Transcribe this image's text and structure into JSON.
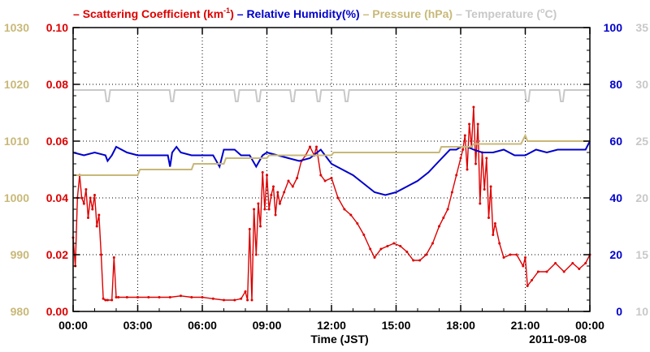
{
  "chart_data": {
    "type": "line",
    "date_label": "2011-09-08",
    "xlabel": "Time (JST)",
    "x_ticks": [
      "00:00",
      "03:00",
      "06:00",
      "09:00",
      "12:00",
      "15:00",
      "18:00",
      "21:00",
      "00:00"
    ],
    "xlim_hours": [
      0,
      24
    ],
    "grid": true,
    "legend_position": "top",
    "axes": {
      "pressure": {
        "ticks": [
          "980",
          "990",
          "1000",
          "1010",
          "1020",
          "1030"
        ],
        "range": [
          980,
          1030
        ],
        "color": "#c8b878",
        "side": "left-outer"
      },
      "scattering": {
        "ticks": [
          "0.00",
          "0.02",
          "0.04",
          "0.06",
          "0.08",
          "0.10"
        ],
        "range": [
          0,
          0.1
        ],
        "color": "#dd0000",
        "side": "left-inner"
      },
      "humidity": {
        "ticks": [
          "0",
          "20",
          "40",
          "60",
          "80",
          "100"
        ],
        "range": [
          0,
          100
        ],
        "color": "#0000cc",
        "side": "right-inner"
      },
      "temperature": {
        "ticks": [
          "10",
          "15",
          "20",
          "25",
          "30",
          "35"
        ],
        "range": [
          10,
          35
        ],
        "color": "#c8c8c8",
        "side": "right-outer"
      }
    },
    "series": [
      {
        "id": "scattering",
        "name": "Scattering Coefficient (km",
        "name_sup": "-1",
        "name_tail": ")",
        "color": "#dd0000",
        "markers": true,
        "x": [
          0.0,
          0.1,
          0.2,
          0.3,
          0.4,
          0.5,
          0.6,
          0.7,
          0.8,
          0.9,
          1.0,
          1.1,
          1.2,
          1.3,
          1.4,
          1.5,
          1.6,
          1.8,
          1.9,
          2.0,
          2.1,
          2.5,
          3.0,
          3.5,
          4.0,
          4.5,
          5.0,
          5.5,
          6.0,
          6.5,
          7.0,
          7.5,
          7.8,
          8.0,
          8.1,
          8.2,
          8.3,
          8.4,
          8.5,
          8.6,
          8.7,
          8.8,
          8.9,
          9.0,
          9.1,
          9.2,
          9.3,
          9.4,
          9.5,
          9.6,
          9.8,
          10.0,
          10.2,
          10.4,
          10.6,
          10.8,
          11.0,
          11.2,
          11.3,
          11.5,
          11.7,
          12.0,
          12.3,
          12.6,
          12.9,
          13.2,
          13.5,
          13.8,
          14.0,
          14.3,
          14.6,
          14.9,
          15.2,
          15.5,
          15.8,
          16.1,
          16.4,
          16.7,
          17.0,
          17.2,
          17.4,
          17.6,
          17.8,
          18.0,
          18.1,
          18.2,
          18.3,
          18.4,
          18.5,
          18.6,
          18.7,
          18.8,
          18.9,
          19.0,
          19.1,
          19.2,
          19.3,
          19.4,
          19.5,
          19.6,
          19.8,
          20.0,
          20.3,
          20.6,
          20.9,
          21.0,
          21.1,
          21.3,
          21.6,
          22.0,
          22.4,
          22.8,
          23.2,
          23.5,
          23.8,
          24.0
        ],
        "y": [
          0.026,
          0.016,
          0.04,
          0.048,
          0.04,
          0.038,
          0.043,
          0.033,
          0.04,
          0.036,
          0.041,
          0.03,
          0.034,
          0.02,
          0.0045,
          0.004,
          0.004,
          0.004,
          0.019,
          0.005,
          0.005,
          0.005,
          0.005,
          0.005,
          0.005,
          0.005,
          0.0055,
          0.005,
          0.005,
          0.0045,
          0.004,
          0.004,
          0.0045,
          0.007,
          0.004,
          0.029,
          0.004,
          0.036,
          0.02,
          0.038,
          0.03,
          0.049,
          0.036,
          0.048,
          0.036,
          0.041,
          0.044,
          0.034,
          0.042,
          0.038,
          0.042,
          0.046,
          0.044,
          0.047,
          0.053,
          0.055,
          0.058,
          0.055,
          0.058,
          0.048,
          0.046,
          0.047,
          0.04,
          0.036,
          0.034,
          0.031,
          0.027,
          0.022,
          0.019,
          0.022,
          0.023,
          0.024,
          0.023,
          0.021,
          0.018,
          0.018,
          0.02,
          0.024,
          0.03,
          0.033,
          0.036,
          0.042,
          0.048,
          0.054,
          0.057,
          0.062,
          0.05,
          0.066,
          0.058,
          0.072,
          0.052,
          0.066,
          0.038,
          0.056,
          0.043,
          0.054,
          0.033,
          0.044,
          0.027,
          0.031,
          0.024,
          0.019,
          0.02,
          0.02,
          0.016,
          0.019,
          0.009,
          0.011,
          0.014,
          0.014,
          0.017,
          0.014,
          0.017,
          0.015,
          0.017,
          0.02
        ]
      },
      {
        "id": "humidity",
        "name": "Relative Humidity(%)",
        "color": "#0000cc",
        "markers": false,
        "x": [
          0.0,
          0.5,
          1.0,
          1.5,
          1.6,
          1.8,
          2.0,
          2.5,
          3.0,
          3.5,
          4.0,
          4.4,
          4.5,
          4.6,
          4.8,
          5.0,
          5.5,
          6.0,
          6.5,
          6.8,
          7.0,
          7.5,
          7.8,
          8.0,
          8.2,
          8.5,
          8.8,
          9.0,
          9.5,
          10.0,
          10.5,
          11.0,
          11.5,
          12.0,
          12.5,
          13.0,
          13.5,
          14.0,
          14.5,
          15.0,
          15.5,
          16.0,
          16.5,
          17.0,
          17.5,
          17.8,
          18.0,
          18.3,
          18.6,
          19.0,
          19.5,
          20.0,
          20.5,
          21.0,
          21.5,
          22.0,
          22.5,
          23.0,
          23.5,
          23.8,
          24.0
        ],
        "y": [
          56,
          55,
          56,
          55,
          53,
          55,
          58,
          56,
          55,
          55,
          55,
          55,
          51,
          56,
          58,
          56,
          55,
          55,
          55,
          51,
          57,
          57,
          55,
          55,
          55,
          51,
          55,
          56,
          55,
          54,
          53,
          54,
          57,
          52,
          50,
          48,
          45,
          42,
          41,
          42,
          44,
          46,
          49,
          53,
          57,
          57,
          58,
          58,
          57,
          56,
          56,
          57,
          55,
          55,
          57,
          56,
          57,
          57,
          57,
          57,
          60
        ]
      },
      {
        "id": "pressure",
        "name": "Pressure (hPa)",
        "color": "#c8b878",
        "markers": false,
        "x": [
          0.0,
          3.0,
          3.1,
          5.5,
          5.6,
          7.0,
          7.1,
          9.0,
          9.1,
          12.0,
          12.1,
          17.0,
          17.1,
          18.5,
          18.6,
          20.8,
          21.0,
          21.1,
          24.0
        ],
        "y": [
          1004,
          1004,
          1005,
          1005,
          1006,
          1006,
          1007,
          1007,
          1007.5,
          1007.5,
          1008,
          1008,
          1009,
          1009,
          1009.5,
          1009.5,
          1011,
          1010,
          1010
        ]
      },
      {
        "id": "temperature",
        "name": "Temperature (",
        "name_sup": "o",
        "name_tail": "C)",
        "color": "#c8c8c8",
        "markers": false,
        "dips_at_hours": [
          1.6,
          4.6,
          7.6,
          8.6,
          10.2,
          11.4,
          12.7,
          21.1,
          22.7
        ],
        "base": 29.5,
        "dip": 28.5
      }
    ]
  }
}
